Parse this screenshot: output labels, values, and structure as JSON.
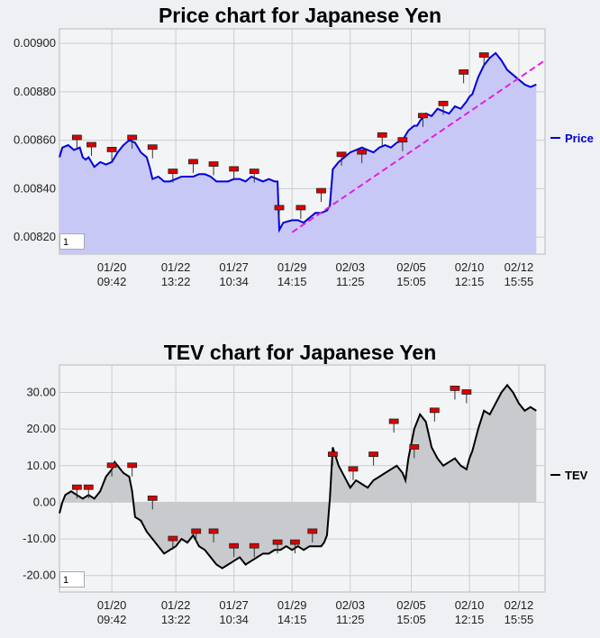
{
  "chart_data": [
    {
      "type": "line",
      "title": "Price chart for Japanese Yen",
      "legend": {
        "label": "Price",
        "placement": "right"
      },
      "colors": {
        "line": "#0000dd",
        "fill": "#c8c8f6",
        "trendline": "#e020e0",
        "marker": "#dd0000"
      },
      "y_ticks": [
        "0.00820",
        "0.00840",
        "0.00860",
        "0.00880",
        "0.00900"
      ],
      "ylim": [
        0.00813,
        0.00906
      ],
      "x_ticks": [
        {
          "date": "01/20",
          "time": "09:42"
        },
        {
          "date": "01/22",
          "time": "13:22"
        },
        {
          "date": "01/27",
          "time": "10:34"
        },
        {
          "date": "01/29",
          "time": "14:15"
        },
        {
          "date": "02/03",
          "time": "11:25"
        },
        {
          "date": "02/05",
          "time": "15:05"
        },
        {
          "date": "02/10",
          "time": "12:15"
        },
        {
          "date": "02/12",
          "time": "15:55"
        }
      ],
      "x_tick_index": [
        0.9,
        2.0,
        3.0,
        4.0,
        5.0,
        6.05,
        7.05,
        7.9
      ],
      "x_range": [
        0,
        8.35
      ],
      "series": [
        {
          "x": [
            0,
            0.05,
            0.15,
            0.25,
            0.35,
            0.4,
            0.45,
            0.5,
            0.6,
            0.7,
            0.8,
            0.9,
            0.95,
            1.0,
            1.1,
            1.2,
            1.3,
            1.4,
            1.5,
            1.55,
            1.6,
            1.7,
            1.75,
            1.8,
            1.9,
            2.0,
            2.1,
            2.2,
            2.3,
            2.4,
            2.5,
            2.6,
            2.7,
            2.8,
            2.9,
            3.0,
            3.1,
            3.2,
            3.3,
            3.4,
            3.5,
            3.6,
            3.7,
            3.75,
            3.78,
            3.85,
            4.0,
            4.1,
            4.2,
            4.3,
            4.4,
            4.5,
            4.6,
            4.65,
            4.7,
            4.8,
            4.9,
            5.0,
            5.1,
            5.2,
            5.3,
            5.4,
            5.5,
            5.6,
            5.7,
            5.8,
            5.9,
            6.0,
            6.1,
            6.15,
            6.2,
            6.3,
            6.4,
            6.5,
            6.6,
            6.7,
            6.8,
            6.9,
            7.0,
            7.05,
            7.1,
            7.2,
            7.3,
            7.4,
            7.5,
            7.6,
            7.7,
            7.8,
            7.9,
            8.0,
            8.1,
            8.2
          ],
          "y": [
            0.00853,
            0.00857,
            0.00858,
            0.00856,
            0.00857,
            0.00853,
            0.00852,
            0.00853,
            0.00849,
            0.00851,
            0.0085,
            0.00851,
            0.00853,
            0.00855,
            0.00858,
            0.0086,
            0.00859,
            0.00855,
            0.00853,
            0.00849,
            0.00844,
            0.00845,
            0.00844,
            0.00843,
            0.00843,
            0.00844,
            0.00845,
            0.00845,
            0.00845,
            0.00846,
            0.00846,
            0.00845,
            0.00843,
            0.00843,
            0.00843,
            0.00844,
            0.00844,
            0.00843,
            0.00845,
            0.00844,
            0.00843,
            0.00844,
            0.00843,
            0.00843,
            0.00823,
            0.00826,
            0.00827,
            0.00827,
            0.00826,
            0.00828,
            0.0083,
            0.0083,
            0.00831,
            0.00833,
            0.00848,
            0.00851,
            0.00853,
            0.00855,
            0.00856,
            0.00857,
            0.00856,
            0.00855,
            0.00857,
            0.00858,
            0.00857,
            0.00859,
            0.0086,
            0.00864,
            0.00866,
            0.00866,
            0.00868,
            0.00871,
            0.0087,
            0.00873,
            0.00872,
            0.00871,
            0.00874,
            0.00873,
            0.00876,
            0.00878,
            0.00879,
            0.00886,
            0.00891,
            0.00894,
            0.00896,
            0.00893,
            0.00889,
            0.00887,
            0.00885,
            0.00883,
            0.00882,
            0.00883
          ]
        }
      ],
      "trendline": {
        "x": [
          4.0,
          8.35
        ],
        "y": [
          0.00822,
          0.00893
        ]
      },
      "markers": [
        {
          "x": 0.3,
          "y": 0.00861
        },
        {
          "x": 0.55,
          "y": 0.00858
        },
        {
          "x": 0.9,
          "y": 0.00856
        },
        {
          "x": 1.25,
          "y": 0.00861
        },
        {
          "x": 1.6,
          "y": 0.00857
        },
        {
          "x": 1.95,
          "y": 0.00847
        },
        {
          "x": 2.3,
          "y": 0.00851
        },
        {
          "x": 2.65,
          "y": 0.0085
        },
        {
          "x": 3.0,
          "y": 0.00848
        },
        {
          "x": 3.35,
          "y": 0.00847
        },
        {
          "x": 3.78,
          "y": 0.00832
        },
        {
          "x": 4.15,
          "y": 0.00832
        },
        {
          "x": 4.5,
          "y": 0.00839
        },
        {
          "x": 4.85,
          "y": 0.00854
        },
        {
          "x": 5.2,
          "y": 0.00855
        },
        {
          "x": 5.55,
          "y": 0.00862
        },
        {
          "x": 5.9,
          "y": 0.0086
        },
        {
          "x": 6.25,
          "y": 0.0087
        },
        {
          "x": 6.6,
          "y": 0.00875
        },
        {
          "x": 6.95,
          "y": 0.00888
        },
        {
          "x": 7.3,
          "y": 0.00895
        }
      ],
      "page_label": "1"
    },
    {
      "type": "area",
      "title": "TEV chart for Japanese Yen",
      "legend": {
        "label": "TEV",
        "placement": "right"
      },
      "colors": {
        "line": "#000000",
        "fill": "#c8cacd",
        "marker": "#dd0000"
      },
      "y_ticks": [
        "-20.00",
        "-10.00",
        "0.00",
        "10.00",
        "20.00",
        "30.00"
      ],
      "ylim": [
        -24.5,
        37.5
      ],
      "x_ticks": [
        {
          "date": "01/20",
          "time": "09:42"
        },
        {
          "date": "01/22",
          "time": "13:22"
        },
        {
          "date": "01/27",
          "time": "10:34"
        },
        {
          "date": "01/29",
          "time": "14:15"
        },
        {
          "date": "02/03",
          "time": "11:25"
        },
        {
          "date": "02/05",
          "time": "15:05"
        },
        {
          "date": "02/10",
          "time": "12:15"
        },
        {
          "date": "02/12",
          "time": "15:55"
        }
      ],
      "x_tick_index": [
        0.9,
        2.0,
        3.0,
        4.0,
        5.0,
        6.05,
        7.05,
        7.9
      ],
      "x_range": [
        0,
        8.35
      ],
      "series": [
        {
          "x": [
            0,
            0.05,
            0.1,
            0.2,
            0.3,
            0.4,
            0.5,
            0.6,
            0.7,
            0.8,
            0.9,
            0.95,
            1.0,
            1.05,
            1.1,
            1.2,
            1.25,
            1.3,
            1.4,
            1.5,
            1.6,
            1.7,
            1.8,
            1.9,
            2.0,
            2.1,
            2.2,
            2.3,
            2.4,
            2.5,
            2.6,
            2.7,
            2.8,
            2.9,
            3.0,
            3.1,
            3.2,
            3.3,
            3.4,
            3.5,
            3.6,
            3.7,
            3.8,
            3.9,
            4.0,
            4.1,
            4.2,
            4.3,
            4.4,
            4.5,
            4.55,
            4.6,
            4.65,
            4.7,
            4.8,
            4.9,
            5.0,
            5.1,
            5.2,
            5.3,
            5.4,
            5.5,
            5.6,
            5.7,
            5.8,
            5.9,
            5.95,
            6.0,
            6.1,
            6.2,
            6.3,
            6.4,
            6.5,
            6.6,
            6.7,
            6.8,
            6.9,
            7.0,
            7.05,
            7.1,
            7.2,
            7.3,
            7.4,
            7.5,
            7.6,
            7.7,
            7.8,
            7.9,
            8.0,
            8.1,
            8.2
          ],
          "y": [
            -3,
            0,
            2,
            3,
            2,
            1,
            2,
            1,
            3,
            7,
            9,
            11,
            10,
            9,
            8,
            7,
            3,
            -4,
            -5,
            -8,
            -10,
            -12,
            -14,
            -13,
            -12,
            -10,
            -11,
            -9,
            -12,
            -13,
            -15,
            -17,
            -18,
            -17,
            -16,
            -15,
            -17,
            -16,
            -15,
            -14,
            -14,
            -13,
            -13,
            -12,
            -13,
            -12,
            -13,
            -12,
            -12,
            -12,
            -11,
            -9,
            1,
            15,
            10,
            7,
            4,
            6,
            5,
            4,
            6,
            7,
            8,
            9,
            10,
            8,
            6,
            12,
            20,
            24,
            22,
            15,
            12,
            10,
            11,
            12,
            10,
            9,
            12,
            14,
            20,
            25,
            24,
            27,
            30,
            32,
            30,
            27,
            25,
            26,
            25
          ]
        }
      ],
      "markers": [
        {
          "x": 0.3,
          "y": 4
        },
        {
          "x": 0.5,
          "y": 4
        },
        {
          "x": 0.9,
          "y": 10
        },
        {
          "x": 1.25,
          "y": 10
        },
        {
          "x": 1.6,
          "y": 1
        },
        {
          "x": 1.95,
          "y": -10
        },
        {
          "x": 2.35,
          "y": -8
        },
        {
          "x": 2.65,
          "y": -8
        },
        {
          "x": 3.0,
          "y": -12
        },
        {
          "x": 3.35,
          "y": -12
        },
        {
          "x": 3.75,
          "y": -11
        },
        {
          "x": 4.05,
          "y": -11
        },
        {
          "x": 4.35,
          "y": -8
        },
        {
          "x": 4.7,
          "y": 13
        },
        {
          "x": 5.05,
          "y": 9
        },
        {
          "x": 5.4,
          "y": 13
        },
        {
          "x": 5.75,
          "y": 22
        },
        {
          "x": 6.1,
          "y": 15
        },
        {
          "x": 6.45,
          "y": 25
        },
        {
          "x": 6.8,
          "y": 31
        },
        {
          "x": 7.0,
          "y": 30
        }
      ],
      "page_label": "1"
    }
  ]
}
